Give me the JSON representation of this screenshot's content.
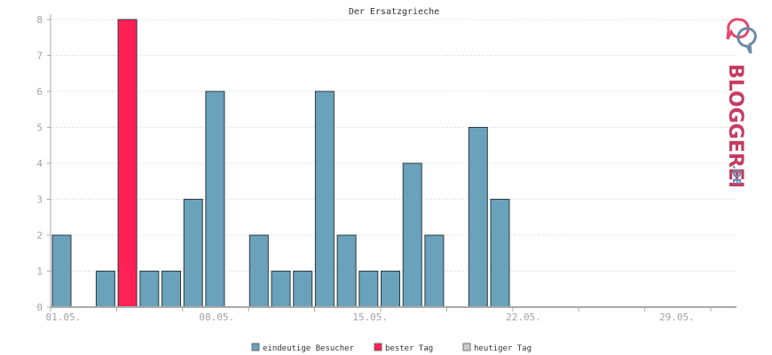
{
  "chart_data": {
    "type": "bar",
    "title": "Der Ersatzgrieche",
    "xlabel": "",
    "ylabel": "",
    "ylim": [
      0,
      8
    ],
    "yticks": [
      0,
      1,
      2,
      3,
      4,
      5,
      6,
      7,
      8
    ],
    "grid": true,
    "legend_position": "bottom",
    "x_tick_labels": [
      {
        "day": 1,
        "label": "01.05."
      },
      {
        "day": 8,
        "label": "08.05."
      },
      {
        "day": 15,
        "label": "15.05."
      },
      {
        "day": 22,
        "label": "22.05."
      },
      {
        "day": 29,
        "label": "29.05."
      }
    ],
    "days": [
      1,
      2,
      3,
      4,
      5,
      6,
      7,
      8,
      9,
      10,
      11,
      12,
      13,
      14,
      15,
      16,
      17,
      18,
      19,
      20,
      21,
      22,
      23,
      24,
      25,
      26,
      27,
      28,
      29,
      30,
      31
    ],
    "series": [
      {
        "name": "eindeutige Besucher",
        "color": "#6aa1bb",
        "values": [
          2,
          0,
          1,
          8,
          1,
          1,
          3,
          6,
          0,
          2,
          1,
          1,
          6,
          2,
          1,
          1,
          4,
          2,
          0,
          5,
          3,
          0,
          0,
          0,
          0,
          0,
          0,
          0,
          0,
          0,
          0
        ]
      }
    ],
    "highlight": {
      "day": 4,
      "legend": "bester Tag",
      "color": "#ff2156"
    },
    "legend": [
      {
        "label": "eindeutige Besucher",
        "color": "#6aa1bb"
      },
      {
        "label": "bester Tag",
        "color": "#ff2156"
      },
      {
        "label": "heutiger Tag",
        "color": "#cccccc"
      }
    ]
  },
  "logo": {
    "text": "BLOGGEREI",
    "suffix": ".DE"
  }
}
